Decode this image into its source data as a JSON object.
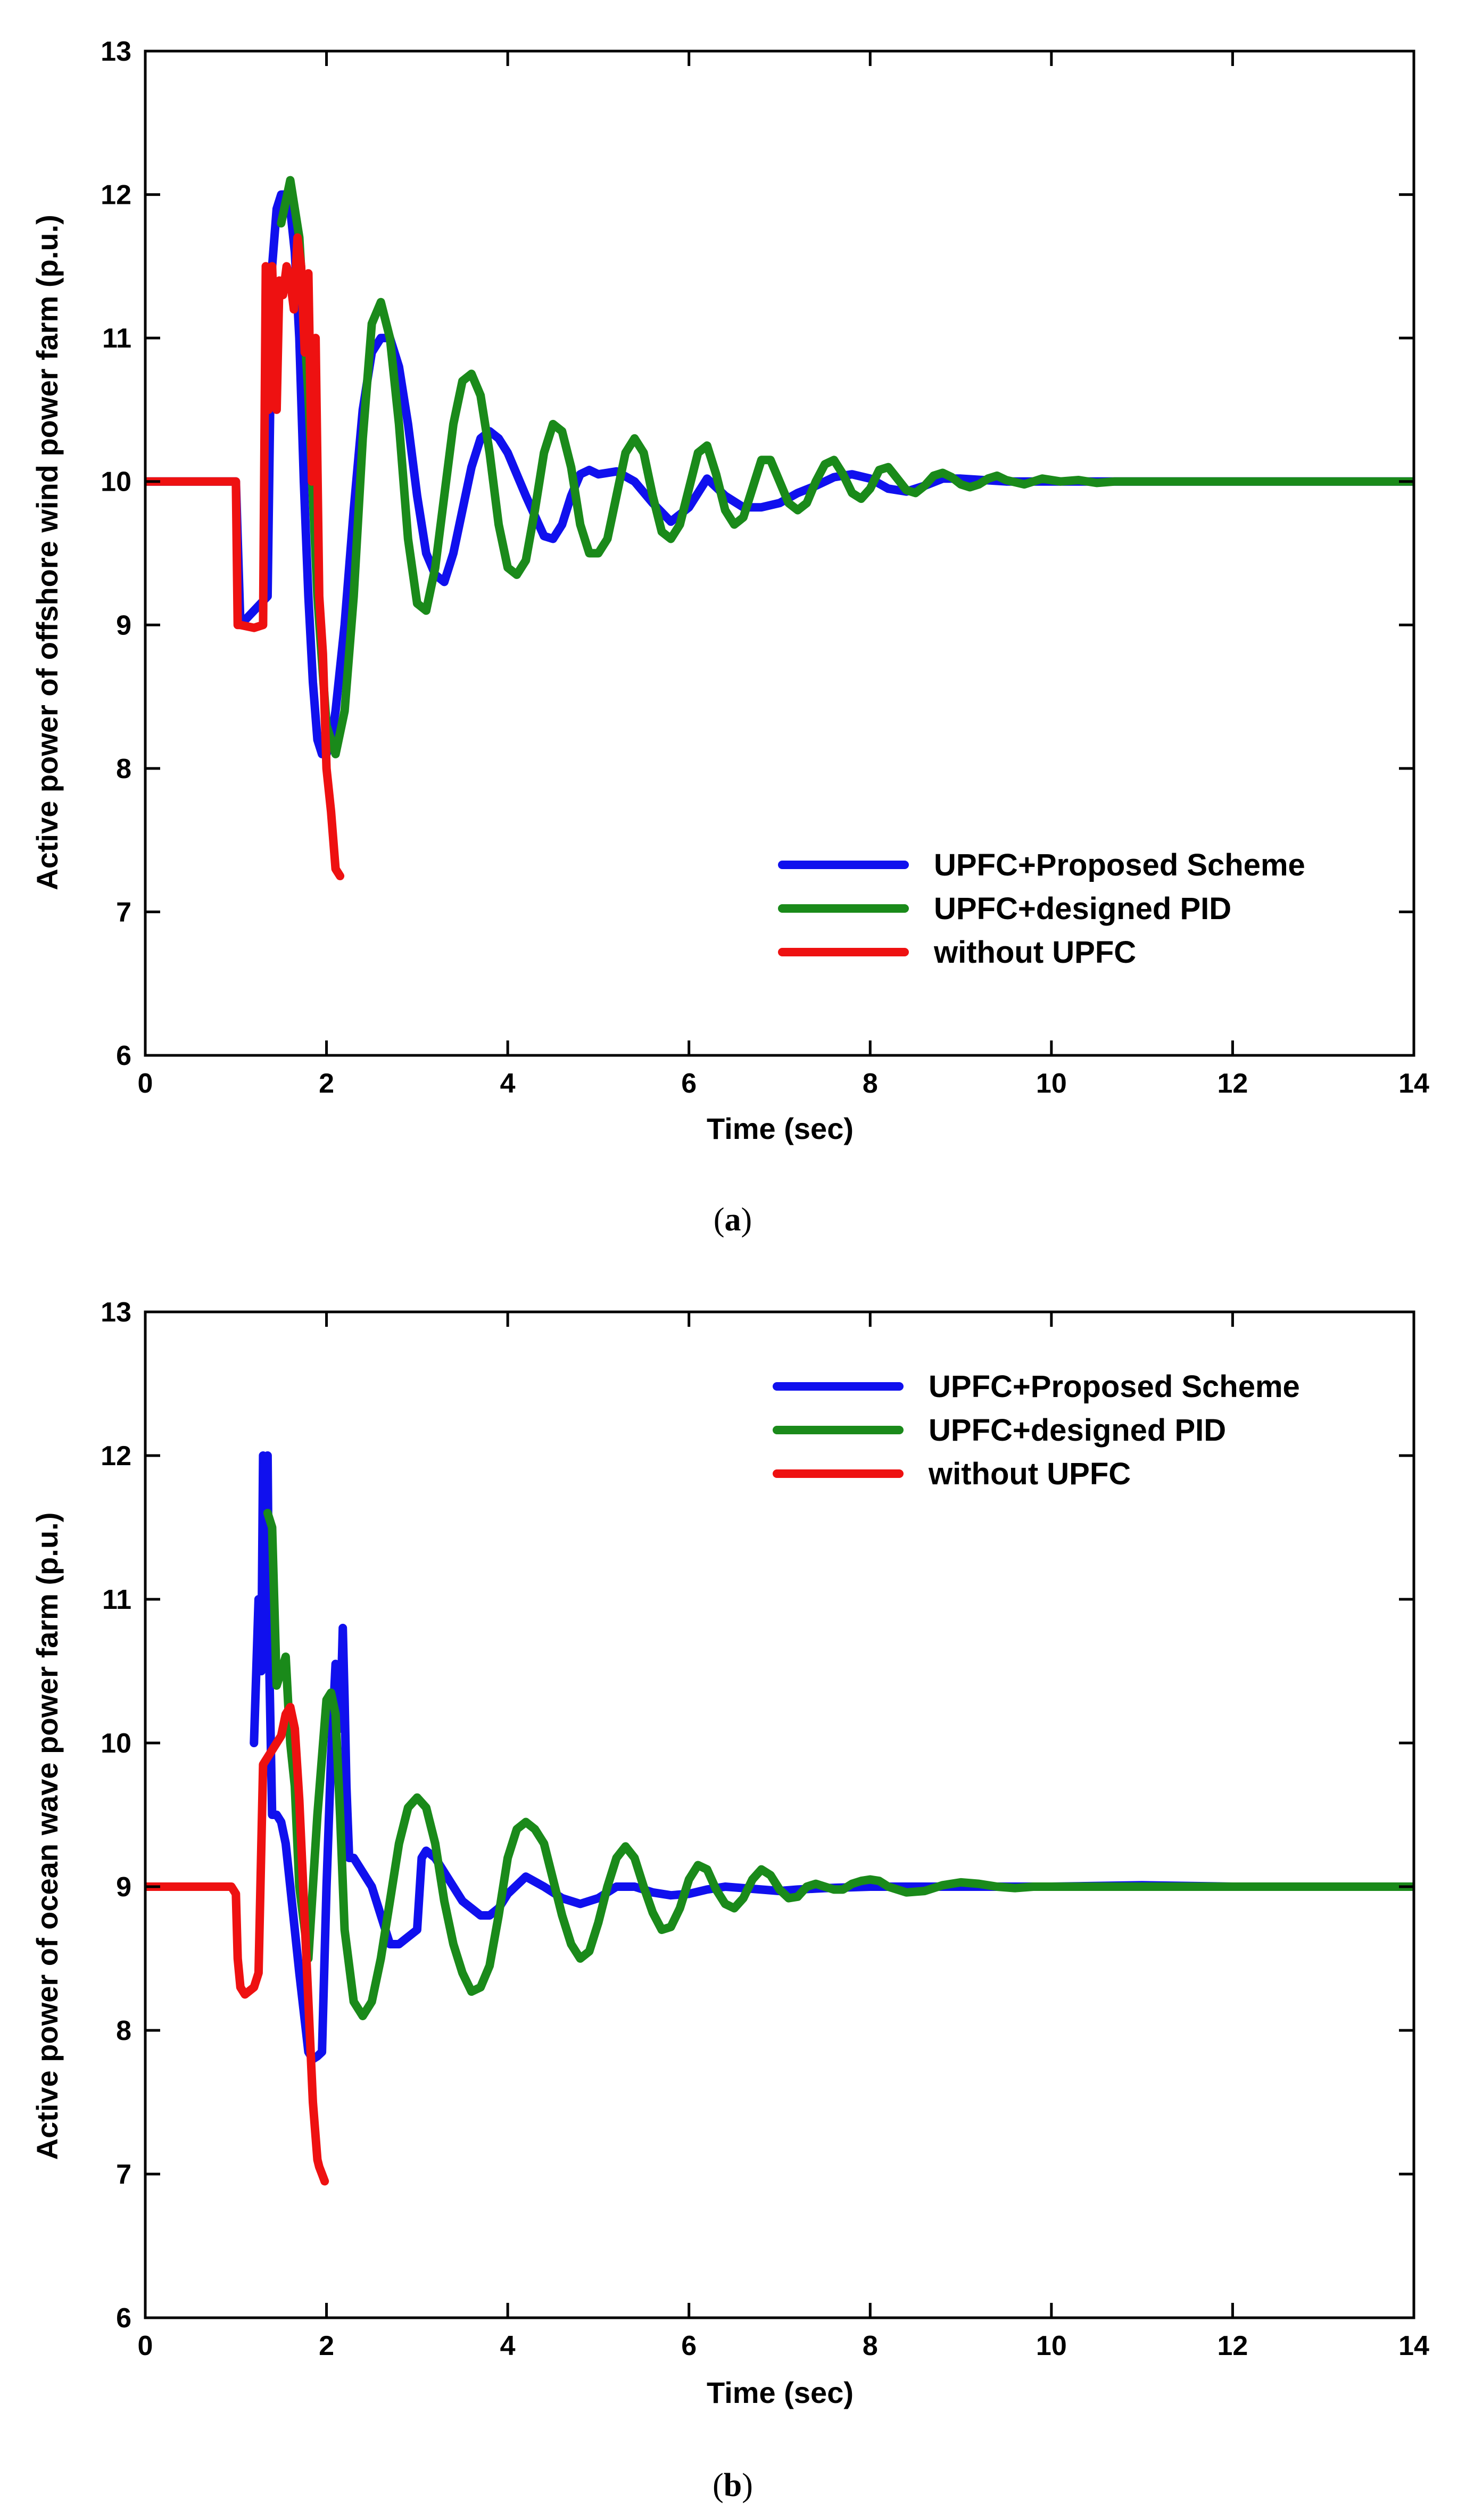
{
  "colors": {
    "UPFC+Proposed Scheme": "#1010ee",
    "UPFC+designed PID": "#1a8a1a",
    "without UPFC": "#ee1111"
  },
  "chart_data": [
    {
      "type": "line",
      "caption": "(a)",
      "caption_letter": "a",
      "xlabel": "Time (sec)",
      "ylabel": "Active power of offshore wind power farm (p.u.)",
      "xlim": [
        0,
        14
      ],
      "ylim": [
        6,
        13
      ],
      "xticks": [
        0,
        2,
        4,
        6,
        8,
        10,
        12,
        14
      ],
      "yticks": [
        6,
        7,
        8,
        9,
        10,
        11,
        12,
        13
      ],
      "legend_position": "bottom-right",
      "series": [
        {
          "name": "UPFC+Proposed Scheme",
          "x": [
            0,
            1.0,
            1.05,
            1.35,
            1.4,
            1.45,
            1.5,
            1.55,
            1.6,
            1.65,
            1.7,
            1.75,
            1.8,
            1.85,
            1.9,
            1.95,
            2.0,
            2.05,
            2.1,
            2.2,
            2.3,
            2.4,
            2.5,
            2.6,
            2.7,
            2.8,
            2.9,
            3.0,
            3.1,
            3.2,
            3.3,
            3.4,
            3.5,
            3.6,
            3.7,
            3.8,
            3.9,
            4.0,
            4.2,
            4.4,
            4.5,
            4.6,
            4.7,
            4.8,
            4.9,
            5.0,
            5.2,
            5.4,
            5.6,
            5.8,
            6.0,
            6.2,
            6.4,
            6.6,
            6.8,
            7.0,
            7.2,
            7.4,
            7.6,
            7.8,
            8.0,
            8.2,
            8.4,
            8.6,
            8.8,
            9.0,
            9.5,
            10,
            11,
            12,
            13,
            14
          ],
          "y": [
            10,
            10,
            9.0,
            9.2,
            11.5,
            11.9,
            12.0,
            12.0,
            11.9,
            11.6,
            11.0,
            10.0,
            9.2,
            8.6,
            8.2,
            8.1,
            8.1,
            8.2,
            8.4,
            9.0,
            9.8,
            10.5,
            10.9,
            11.0,
            11.0,
            10.8,
            10.4,
            9.9,
            9.5,
            9.35,
            9.3,
            9.5,
            9.8,
            10.1,
            10.3,
            10.35,
            10.3,
            10.2,
            9.9,
            9.62,
            9.6,
            9.7,
            9.9,
            10.05,
            10.08,
            10.05,
            10.07,
            10.0,
            9.85,
            9.72,
            9.82,
            10.02,
            9.9,
            9.82,
            9.82,
            9.85,
            9.92,
            9.97,
            10.03,
            10.05,
            10.02,
            9.95,
            9.93,
            9.97,
            10.02,
            10.02,
            10.0,
            10.0,
            10.0,
            10.0,
            10.0,
            10.0
          ]
        },
        {
          "name": "UPFC+designed PID",
          "x": [
            1.5,
            1.6,
            1.7,
            1.8,
            1.9,
            2.0,
            2.1,
            2.2,
            2.3,
            2.4,
            2.5,
            2.6,
            2.7,
            2.8,
            2.9,
            3.0,
            3.1,
            3.2,
            3.3,
            3.4,
            3.5,
            3.6,
            3.7,
            3.8,
            3.9,
            4.0,
            4.1,
            4.2,
            4.3,
            4.4,
            4.5,
            4.6,
            4.7,
            4.8,
            4.9,
            5.0,
            5.1,
            5.2,
            5.3,
            5.4,
            5.5,
            5.6,
            5.7,
            5.8,
            5.9,
            6.0,
            6.1,
            6.2,
            6.3,
            6.4,
            6.5,
            6.6,
            6.7,
            6.8,
            6.9,
            7.0,
            7.1,
            7.2,
            7.3,
            7.4,
            7.5,
            7.6,
            7.7,
            7.8,
            7.9,
            8.0,
            8.1,
            8.2,
            8.3,
            8.4,
            8.5,
            8.6,
            8.7,
            8.8,
            8.9,
            9.0,
            9.1,
            9.2,
            9.3,
            9.4,
            9.5,
            9.7,
            9.9,
            10.1,
            10.3,
            10.5,
            10.7,
            11,
            12,
            13,
            14
          ],
          "y": [
            11.8,
            12.1,
            11.7,
            10.6,
            9.2,
            8.3,
            8.1,
            8.4,
            9.2,
            10.3,
            11.1,
            11.25,
            11.0,
            10.4,
            9.6,
            9.15,
            9.1,
            9.4,
            9.9,
            10.4,
            10.7,
            10.75,
            10.6,
            10.2,
            9.7,
            9.4,
            9.35,
            9.45,
            9.8,
            10.2,
            10.4,
            10.35,
            10.1,
            9.7,
            9.5,
            9.5,
            9.6,
            9.9,
            10.2,
            10.3,
            10.2,
            9.9,
            9.65,
            9.6,
            9.7,
            9.95,
            10.2,
            10.25,
            10.05,
            9.8,
            9.7,
            9.75,
            9.95,
            10.15,
            10.15,
            10.0,
            9.85,
            9.8,
            9.85,
            10.0,
            10.12,
            10.15,
            10.05,
            9.92,
            9.88,
            9.95,
            10.08,
            10.1,
            10.02,
            9.94,
            9.92,
            9.97,
            10.04,
            10.06,
            10.03,
            9.98,
            9.96,
            9.98,
            10.02,
            10.04,
            10.01,
            9.98,
            10.02,
            10.0,
            10.01,
            9.99,
            10.0,
            10.0,
            10.0,
            10.0,
            10.0
          ]
        },
        {
          "name": "without UPFC",
          "x": [
            0,
            0.98,
            1.0,
            1.02,
            1.05,
            1.2,
            1.3,
            1.33,
            1.36,
            1.4,
            1.45,
            1.48,
            1.52,
            1.56,
            1.6,
            1.64,
            1.68,
            1.72,
            1.76,
            1.8,
            1.84,
            1.88,
            1.92,
            1.96,
            2.0,
            2.05,
            2.1,
            2.15
          ],
          "y": [
            10,
            10,
            10.0,
            9.0,
            9.0,
            8.98,
            9.0,
            11.5,
            10.5,
            11.5,
            10.5,
            11.4,
            11.3,
            11.5,
            11.4,
            11.2,
            11.7,
            11.5,
            10.9,
            11.45,
            10.0,
            11.0,
            9.2,
            8.8,
            8.0,
            7.7,
            7.3,
            7.25
          ]
        }
      ]
    },
    {
      "type": "line",
      "caption": "(b)",
      "caption_letter": "b",
      "xlabel": "Time (sec)",
      "ylabel": "Active power of ocean wave power farm (p.u.)",
      "xlim": [
        0,
        14
      ],
      "ylim": [
        6,
        13
      ],
      "xticks": [
        0,
        2,
        4,
        6,
        8,
        10,
        12,
        14
      ],
      "yticks": [
        6,
        7,
        8,
        9,
        10,
        11,
        12,
        13
      ],
      "legend_position": "top-right",
      "series": [
        {
          "name": "UPFC+Proposed Scheme",
          "x": [
            1.2,
            1.25,
            1.28,
            1.3,
            1.32,
            1.35,
            1.37,
            1.4,
            1.45,
            1.5,
            1.55,
            1.6,
            1.7,
            1.8,
            1.85,
            1.9,
            1.95,
            2.0,
            2.05,
            2.1,
            2.15,
            2.18,
            2.2,
            2.22,
            2.25,
            2.3,
            2.4,
            2.5,
            2.6,
            2.7,
            2.8,
            2.9,
            3.0,
            3.05,
            3.1,
            3.2,
            3.3,
            3.4,
            3.5,
            3.6,
            3.7,
            3.8,
            3.9,
            4.0,
            4.2,
            4.4,
            4.6,
            4.8,
            5.0,
            5.2,
            5.4,
            5.6,
            5.8,
            6.0,
            6.2,
            6.4,
            6.6,
            6.8,
            7.0,
            7.2,
            7.5,
            8.0,
            8.5,
            9,
            10,
            11,
            12,
            13,
            14
          ],
          "y": [
            10.0,
            11.0,
            10.5,
            12.0,
            11.0,
            12.0,
            10.5,
            9.5,
            9.5,
            9.45,
            9.3,
            9.0,
            8.4,
            7.85,
            7.8,
            7.82,
            7.85,
            9.0,
            9.9,
            10.55,
            10.1,
            10.8,
            10.3,
            9.7,
            9.2,
            9.2,
            9.1,
            9.0,
            8.8,
            8.6,
            8.6,
            8.65,
            8.7,
            9.2,
            9.25,
            9.2,
            9.1,
            9.0,
            8.9,
            8.85,
            8.8,
            8.8,
            8.85,
            8.95,
            9.07,
            9.0,
            8.92,
            8.88,
            8.92,
            9.0,
            9.0,
            8.96,
            8.94,
            8.95,
            8.98,
            9.0,
            8.99,
            8.98,
            8.97,
            8.98,
            8.99,
            9.0,
            9.0,
            9.0,
            9.0,
            9.01,
            9.0,
            9.0,
            9.0
          ]
        },
        {
          "name": "UPFC+designed PID",
          "x": [
            1.35,
            1.4,
            1.45,
            1.5,
            1.55,
            1.6,
            1.65,
            1.7,
            1.8,
            1.9,
            2.0,
            2.05,
            2.1,
            2.15,
            2.2,
            2.3,
            2.4,
            2.5,
            2.6,
            2.7,
            2.8,
            2.9,
            3.0,
            3.1,
            3.2,
            3.3,
            3.4,
            3.5,
            3.6,
            3.7,
            3.8,
            3.9,
            4.0,
            4.1,
            4.2,
            4.3,
            4.4,
            4.5,
            4.6,
            4.7,
            4.8,
            4.9,
            5.0,
            5.1,
            5.2,
            5.3,
            5.4,
            5.5,
            5.6,
            5.7,
            5.8,
            5.9,
            6.0,
            6.1,
            6.2,
            6.3,
            6.4,
            6.5,
            6.6,
            6.7,
            6.8,
            6.9,
            7.0,
            7.1,
            7.2,
            7.3,
            7.4,
            7.5,
            7.6,
            7.7,
            7.8,
            7.9,
            8.0,
            8.1,
            8.2,
            8.4,
            8.6,
            8.8,
            9.0,
            9.2,
            9.4,
            9.6,
            9.8,
            10,
            11,
            12,
            13,
            14
          ],
          "y": [
            11.6,
            11.5,
            10.4,
            10.5,
            10.6,
            10.0,
            9.7,
            9.0,
            8.5,
            9.5,
            10.3,
            10.35,
            10.2,
            9.5,
            8.7,
            8.2,
            8.1,
            8.2,
            8.5,
            8.9,
            9.3,
            9.55,
            9.62,
            9.55,
            9.3,
            8.9,
            8.6,
            8.4,
            8.27,
            8.3,
            8.45,
            8.8,
            9.2,
            9.4,
            9.45,
            9.4,
            9.3,
            9.05,
            8.8,
            8.6,
            8.5,
            8.55,
            8.75,
            9.0,
            9.2,
            9.28,
            9.2,
            9.0,
            8.82,
            8.7,
            8.72,
            8.85,
            9.05,
            9.15,
            9.12,
            8.98,
            8.88,
            8.85,
            8.92,
            9.05,
            9.12,
            9.08,
            8.98,
            8.92,
            8.93,
            9.0,
            9.02,
            9.0,
            8.98,
            8.98,
            9.02,
            9.04,
            9.05,
            9.04,
            9.0,
            8.96,
            8.97,
            9.01,
            9.03,
            9.02,
            9.0,
            8.99,
            9.0,
            9.0,
            9.0,
            9.0,
            9.0,
            9.0
          ]
        },
        {
          "name": "without UPFC",
          "x": [
            0,
            0.95,
            1.0,
            1.02,
            1.05,
            1.1,
            1.2,
            1.25,
            1.3,
            1.35,
            1.4,
            1.45,
            1.5,
            1.55,
            1.6,
            1.65,
            1.7,
            1.75,
            1.8,
            1.85,
            1.9,
            1.92,
            1.95,
            1.98
          ],
          "y": [
            9,
            9,
            8.95,
            8.5,
            8.3,
            8.25,
            8.3,
            8.4,
            9.85,
            9.9,
            9.95,
            10.0,
            10.05,
            10.2,
            10.25,
            10.1,
            9.6,
            8.9,
            8.2,
            7.5,
            7.1,
            7.05,
            7.0,
            6.95
          ]
        }
      ]
    }
  ]
}
